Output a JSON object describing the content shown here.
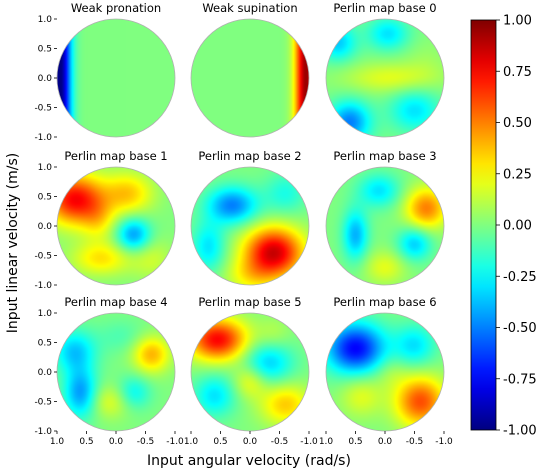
{
  "chart_data": {
    "type": "heatmap",
    "xlabel": "Input angular velocity (rad/s)",
    "ylabel": "Input linear velocity (m/s)",
    "xlim": [
      1.0,
      -1.0
    ],
    "ylim": [
      -1.0,
      1.0
    ],
    "x_ticks": [
      "1.0",
      "0.5",
      "0.0",
      "-0.5",
      "-1.0"
    ],
    "y_ticks": [
      "1.0",
      "0.5",
      "0.0",
      "-0.5",
      "-1.0"
    ],
    "colormap": "jet",
    "colorbar": {
      "range": [
        -1.0,
        1.0
      ],
      "ticks": [
        "1.00",
        "0.75",
        "0.50",
        "0.25",
        "0.00",
        "-0.25",
        "-0.50",
        "-0.75",
        "-1.00"
      ]
    },
    "panels": [
      {
        "title": "Weak pronation",
        "blobs": [
          {
            "x": 0.95,
            "y": 0.0,
            "sx": 0.13,
            "sy": 9.0,
            "v": -1.0
          }
        ]
      },
      {
        "title": "Weak supination",
        "blobs": [
          {
            "x": -0.95,
            "y": 0.0,
            "sx": 0.13,
            "sy": 9.0,
            "v": 0.95
          }
        ]
      },
      {
        "title": "Perlin map base 0",
        "blobs": [
          {
            "x": 0.6,
            "y": -0.75,
            "sx": 0.25,
            "sy": 0.25,
            "v": -0.5
          },
          {
            "x": 0.8,
            "y": 0.6,
            "sx": 0.22,
            "sy": 0.22,
            "v": -0.35
          },
          {
            "x": -0.05,
            "y": 0.75,
            "sx": 0.25,
            "sy": 0.2,
            "v": -0.3
          },
          {
            "x": -0.1,
            "y": 0.0,
            "sx": 0.55,
            "sy": 0.18,
            "v": 0.2
          },
          {
            "x": -0.5,
            "y": -0.55,
            "sx": 0.3,
            "sy": 0.25,
            "v": -0.3
          },
          {
            "x": -0.7,
            "y": 0.3,
            "sx": 0.25,
            "sy": 0.25,
            "v": 0.05
          }
        ]
      },
      {
        "title": "Perlin map base 1",
        "blobs": [
          {
            "x": 0.7,
            "y": 0.45,
            "sx": 0.35,
            "sy": 0.3,
            "v": 0.75
          },
          {
            "x": -0.2,
            "y": 0.55,
            "sx": 0.3,
            "sy": 0.25,
            "v": 0.35
          },
          {
            "x": -0.3,
            "y": -0.15,
            "sx": 0.2,
            "sy": 0.2,
            "v": -0.45
          },
          {
            "x": 0.25,
            "y": -0.55,
            "sx": 0.35,
            "sy": 0.2,
            "v": 0.3
          },
          {
            "x": -0.6,
            "y": -0.55,
            "sx": 0.25,
            "sy": 0.25,
            "v": 0.15
          },
          {
            "x": 0.3,
            "y": 0.1,
            "sx": 0.2,
            "sy": 0.25,
            "v": 0.2
          }
        ]
      },
      {
        "title": "Perlin map base 2",
        "blobs": [
          {
            "x": -0.4,
            "y": -0.45,
            "sx": 0.35,
            "sy": 0.3,
            "v": 0.85
          },
          {
            "x": 0.3,
            "y": 0.35,
            "sx": 0.3,
            "sy": 0.22,
            "v": -0.5
          },
          {
            "x": 0.7,
            "y": -0.35,
            "sx": 0.2,
            "sy": 0.3,
            "v": -0.3
          },
          {
            "x": -0.6,
            "y": 0.55,
            "sx": 0.25,
            "sy": 0.25,
            "v": -0.2
          },
          {
            "x": 0.0,
            "y": -0.85,
            "sx": 0.3,
            "sy": 0.2,
            "v": 0.2
          }
        ]
      },
      {
        "title": "Perlin map base 3",
        "blobs": [
          {
            "x": -0.7,
            "y": 0.3,
            "sx": 0.25,
            "sy": 0.25,
            "v": 0.5
          },
          {
            "x": 0.5,
            "y": -0.15,
            "sx": 0.15,
            "sy": 0.3,
            "v": -0.4
          },
          {
            "x": 0.1,
            "y": 0.6,
            "sx": 0.25,
            "sy": 0.2,
            "v": -0.3
          },
          {
            "x": -0.5,
            "y": -0.3,
            "sx": 0.2,
            "sy": 0.2,
            "v": -0.35
          },
          {
            "x": 0.0,
            "y": -0.7,
            "sx": 0.25,
            "sy": 0.2,
            "v": 0.2
          }
        ]
      },
      {
        "title": "Perlin map base 4",
        "blobs": [
          {
            "x": -0.6,
            "y": 0.3,
            "sx": 0.22,
            "sy": 0.22,
            "v": 0.4
          },
          {
            "x": 0.7,
            "y": 0.35,
            "sx": 0.25,
            "sy": 0.25,
            "v": -0.35
          },
          {
            "x": 0.6,
            "y": -0.35,
            "sx": 0.2,
            "sy": 0.3,
            "v": -0.45
          },
          {
            "x": 0.1,
            "y": -0.5,
            "sx": 0.25,
            "sy": 0.2,
            "v": 0.2
          },
          {
            "x": -0.3,
            "y": -0.35,
            "sx": 0.2,
            "sy": 0.2,
            "v": -0.25
          },
          {
            "x": -0.1,
            "y": 0.6,
            "sx": 0.3,
            "sy": 0.2,
            "v": -0.1
          }
        ]
      },
      {
        "title": "Perlin map base 5",
        "blobs": [
          {
            "x": 0.55,
            "y": 0.55,
            "sx": 0.35,
            "sy": 0.25,
            "v": 0.75
          },
          {
            "x": -0.3,
            "y": 0.15,
            "sx": 0.3,
            "sy": 0.25,
            "v": -0.35
          },
          {
            "x": 0.6,
            "y": -0.4,
            "sx": 0.25,
            "sy": 0.25,
            "v": -0.3
          },
          {
            "x": -0.6,
            "y": -0.55,
            "sx": 0.3,
            "sy": 0.25,
            "v": 0.35
          },
          {
            "x": 0.0,
            "y": -0.15,
            "sx": 0.2,
            "sy": 0.2,
            "v": 0.25
          },
          {
            "x": -0.4,
            "y": 0.65,
            "sx": 0.2,
            "sy": 0.2,
            "v": 0.1
          }
        ]
      },
      {
        "title": "Perlin map base 6",
        "blobs": [
          {
            "x": 0.5,
            "y": 0.4,
            "sx": 0.35,
            "sy": 0.3,
            "v": -0.75
          },
          {
            "x": -0.6,
            "y": -0.5,
            "sx": 0.3,
            "sy": 0.3,
            "v": 0.6
          },
          {
            "x": 0.4,
            "y": -0.4,
            "sx": 0.25,
            "sy": 0.25,
            "v": 0.2
          },
          {
            "x": -0.5,
            "y": 0.45,
            "sx": 0.25,
            "sy": 0.25,
            "v": -0.3
          },
          {
            "x": -0.1,
            "y": 0.0,
            "sx": 0.2,
            "sy": 0.2,
            "v": 0.1
          }
        ]
      }
    ]
  }
}
